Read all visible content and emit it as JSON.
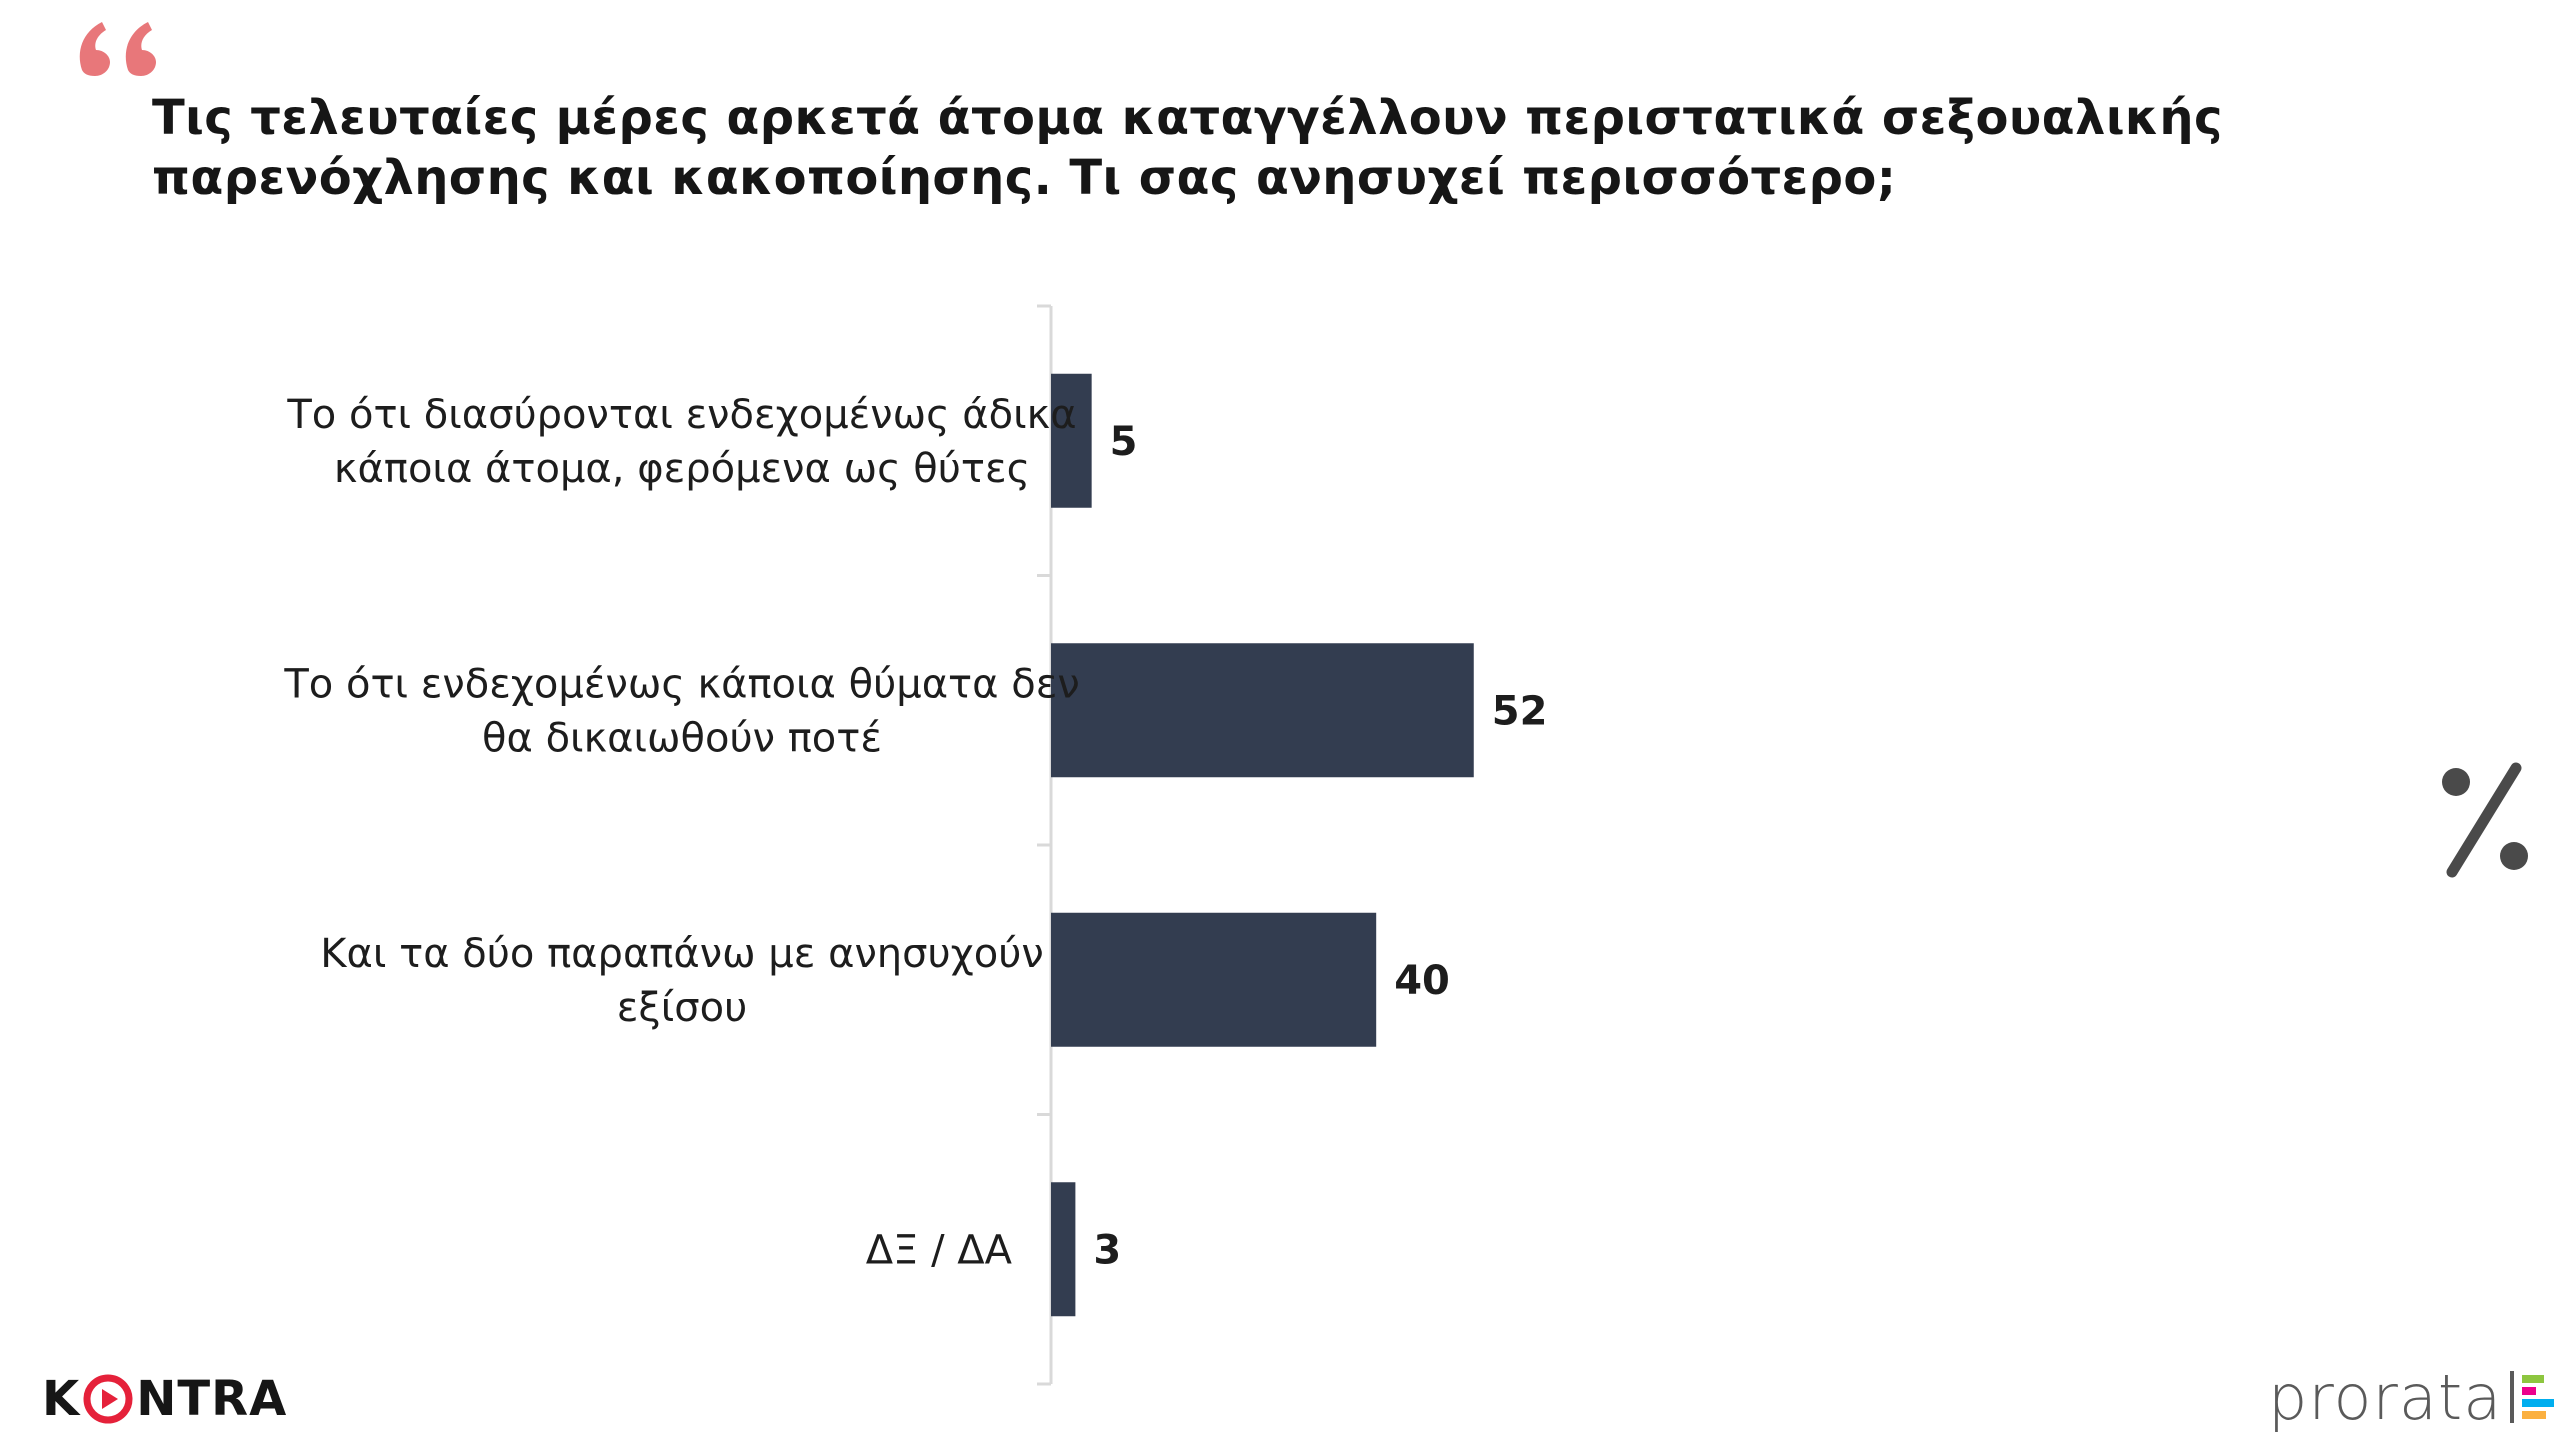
{
  "question": {
    "line1": "Τις τελευταίες μέρες αρκετά άτομα καταγγέλλουν περιστατικά σεξουαλικής",
    "line2": "παρενόχλησης και κακοποίησης. Τι σας ανησυχεί περισσότερο;"
  },
  "colors": {
    "bar": "#333d50",
    "quote": "#e8777a",
    "text": "#1d1d1d",
    "axis": "#d9d9d9",
    "percent": "#4a4a4a"
  },
  "chart_data": {
    "type": "bar",
    "orientation": "horizontal",
    "categories": [
      [
        "Το ότι διασύρονται ενδεχομένως άδικα",
        "κάποια άτομα, φερόμενα ως θύτες"
      ],
      [
        "Το ότι ενδεχομένως κάποια θύματα δεν",
        "θα δικαιωθούν ποτέ"
      ],
      [
        "Και τα δύο παραπάνω με ανησυχούν",
        "εξίσου"
      ],
      [
        "ΔΞ / ΔΑ"
      ]
    ],
    "values": [
      5,
      52,
      40,
      3
    ],
    "data_labels": [
      "5",
      "52",
      "40",
      "3"
    ],
    "unit_symbol": "%",
    "xlim": [
      0,
      100
    ],
    "grid": false
  },
  "branding": {
    "left_logo": {
      "part1": "K",
      "part2": "NTRA"
    },
    "right_logo": "prorata"
  }
}
